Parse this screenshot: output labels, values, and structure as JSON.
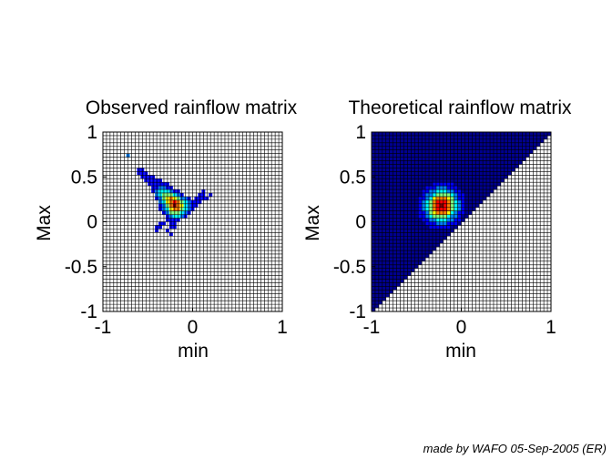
{
  "footer": "made by WAFO 05-Sep-2005 (ER)",
  "colormap": [
    "#00008f",
    "#0000ff",
    "#0080ff",
    "#00ffff",
    "#80ff80",
    "#ffff00",
    "#ff8000",
    "#ff0000",
    "#800000"
  ],
  "chart_data": [
    {
      "type": "heatmap",
      "title": "Observed rainflow matrix",
      "xlabel": "min",
      "ylabel": "Max",
      "xlim": [
        -1,
        1
      ],
      "ylim": [
        -1,
        1
      ],
      "xticks": [
        "-1",
        "0",
        "1"
      ],
      "yticks": [
        "-1",
        "-0.5",
        "0",
        "0.5",
        "1"
      ],
      "grid": true,
      "grid_step": 0.04,
      "cells": [
        [
          -0.72,
          0.74,
          0.25
        ],
        [
          -0.6,
          0.58,
          0.15
        ],
        [
          -0.56,
          0.58,
          0.15
        ],
        [
          -0.6,
          0.54,
          0.15
        ],
        [
          -0.56,
          0.54,
          0.15
        ],
        [
          -0.52,
          0.54,
          0.15
        ],
        [
          -0.56,
          0.5,
          0.15
        ],
        [
          -0.52,
          0.5,
          0.15
        ],
        [
          -0.48,
          0.5,
          0.15
        ],
        [
          -0.44,
          0.5,
          0.15
        ],
        [
          -0.52,
          0.46,
          0.15
        ],
        [
          -0.48,
          0.46,
          0.15
        ],
        [
          -0.44,
          0.46,
          0.15
        ],
        [
          -0.4,
          0.46,
          0.15
        ],
        [
          -0.36,
          0.46,
          0.15
        ],
        [
          -0.48,
          0.42,
          0.15
        ],
        [
          -0.44,
          0.42,
          0.15
        ],
        [
          -0.4,
          0.42,
          0.15
        ],
        [
          -0.36,
          0.42,
          0.15
        ],
        [
          -0.32,
          0.42,
          0.15
        ],
        [
          -0.28,
          0.42,
          0.15
        ],
        [
          -0.44,
          0.38,
          0.15
        ],
        [
          -0.4,
          0.38,
          0.15
        ],
        [
          -0.36,
          0.38,
          0.25
        ],
        [
          -0.32,
          0.38,
          0.25
        ],
        [
          -0.28,
          0.38,
          0.15
        ],
        [
          -0.24,
          0.38,
          0.15
        ],
        [
          -0.44,
          0.34,
          0.15
        ],
        [
          -0.4,
          0.34,
          0.25
        ],
        [
          -0.36,
          0.34,
          0.35
        ],
        [
          -0.32,
          0.34,
          0.4
        ],
        [
          -0.28,
          0.34,
          0.35
        ],
        [
          -0.24,
          0.34,
          0.25
        ],
        [
          -0.2,
          0.34,
          0.15
        ],
        [
          -0.16,
          0.34,
          0.15
        ],
        [
          0.12,
          0.34,
          0.15
        ],
        [
          -0.4,
          0.3,
          0.25
        ],
        [
          -0.36,
          0.3,
          0.4
        ],
        [
          -0.32,
          0.3,
          0.55
        ],
        [
          -0.28,
          0.3,
          0.55
        ],
        [
          -0.24,
          0.3,
          0.45
        ],
        [
          -0.2,
          0.3,
          0.35
        ],
        [
          -0.16,
          0.3,
          0.25
        ],
        [
          -0.12,
          0.3,
          0.15
        ],
        [
          0.08,
          0.3,
          0.15
        ],
        [
          0.12,
          0.3,
          0.15
        ],
        [
          0.2,
          0.3,
          0.15
        ],
        [
          -0.4,
          0.26,
          0.15
        ],
        [
          -0.36,
          0.26,
          0.3
        ],
        [
          -0.32,
          0.26,
          0.5
        ],
        [
          -0.28,
          0.26,
          0.65
        ],
        [
          -0.24,
          0.26,
          0.7
        ],
        [
          -0.2,
          0.26,
          0.6
        ],
        [
          -0.16,
          0.26,
          0.45
        ],
        [
          -0.12,
          0.26,
          0.3
        ],
        [
          -0.08,
          0.26,
          0.2
        ],
        [
          -0.04,
          0.26,
          0.15
        ],
        [
          0.04,
          0.26,
          0.15
        ],
        [
          0.08,
          0.26,
          0.15
        ],
        [
          0.12,
          0.26,
          0.15
        ],
        [
          0.16,
          0.26,
          0.15
        ],
        [
          -0.36,
          0.22,
          0.2
        ],
        [
          -0.32,
          0.22,
          0.4
        ],
        [
          -0.28,
          0.22,
          0.6
        ],
        [
          -0.24,
          0.22,
          0.8
        ],
        [
          -0.2,
          0.22,
          0.85
        ],
        [
          -0.16,
          0.22,
          0.7
        ],
        [
          -0.12,
          0.22,
          0.5
        ],
        [
          -0.08,
          0.22,
          0.35
        ],
        [
          -0.04,
          0.22,
          0.25
        ],
        [
          0.0,
          0.22,
          0.15
        ],
        [
          0.04,
          0.22,
          0.15
        ],
        [
          0.08,
          0.22,
          0.15
        ],
        [
          -0.36,
          0.18,
          0.15
        ],
        [
          -0.32,
          0.18,
          0.3
        ],
        [
          -0.28,
          0.18,
          0.5
        ],
        [
          -0.24,
          0.18,
          0.75
        ],
        [
          -0.2,
          0.18,
          0.95
        ],
        [
          -0.16,
          0.18,
          0.8
        ],
        [
          -0.12,
          0.18,
          0.6
        ],
        [
          -0.08,
          0.18,
          0.4
        ],
        [
          -0.04,
          0.18,
          0.25
        ],
        [
          0.0,
          0.18,
          0.15
        ],
        [
          0.04,
          0.18,
          0.15
        ],
        [
          -0.36,
          0.14,
          0.15
        ],
        [
          -0.32,
          0.14,
          0.2
        ],
        [
          -0.28,
          0.14,
          0.4
        ],
        [
          -0.24,
          0.14,
          0.6
        ],
        [
          -0.2,
          0.14,
          0.8
        ],
        [
          -0.16,
          0.14,
          0.7
        ],
        [
          -0.12,
          0.14,
          0.5
        ],
        [
          -0.08,
          0.14,
          0.35
        ],
        [
          -0.04,
          0.14,
          0.2
        ],
        [
          0.0,
          0.14,
          0.15
        ],
        [
          -0.32,
          0.1,
          0.15
        ],
        [
          -0.28,
          0.1,
          0.25
        ],
        [
          -0.24,
          0.1,
          0.45
        ],
        [
          -0.2,
          0.1,
          0.55
        ],
        [
          -0.16,
          0.1,
          0.5
        ],
        [
          -0.12,
          0.1,
          0.4
        ],
        [
          -0.08,
          0.1,
          0.25
        ],
        [
          -0.04,
          0.1,
          0.15
        ],
        [
          -0.28,
          0.06,
          0.15
        ],
        [
          -0.24,
          0.06,
          0.25
        ],
        [
          -0.2,
          0.06,
          0.35
        ],
        [
          -0.16,
          0.06,
          0.35
        ],
        [
          -0.12,
          0.06,
          0.25
        ],
        [
          -0.08,
          0.06,
          0.15
        ],
        [
          -0.28,
          0.02,
          0.15
        ],
        [
          -0.24,
          0.02,
          0.15
        ],
        [
          -0.2,
          0.02,
          0.15
        ],
        [
          -0.16,
          0.02,
          0.15
        ],
        [
          -0.36,
          -0.02,
          0.15
        ],
        [
          -0.32,
          -0.02,
          0.15
        ],
        [
          -0.24,
          -0.02,
          0.15
        ],
        [
          -0.2,
          -0.02,
          0.15
        ],
        [
          -0.4,
          -0.06,
          0.15
        ],
        [
          -0.36,
          -0.06,
          0.15
        ],
        [
          -0.24,
          -0.06,
          0.15
        ],
        [
          -0.2,
          -0.06,
          0.15
        ],
        [
          -0.4,
          -0.1,
          0.15
        ],
        [
          -0.28,
          -0.1,
          0.15
        ],
        [
          -0.24,
          -0.14,
          0.15
        ]
      ]
    },
    {
      "type": "heatmap",
      "title": "Theoretical rainflow matrix",
      "xlabel": "min",
      "ylabel": "Max",
      "xlim": [
        -1,
        1
      ],
      "ylim": [
        -1,
        1
      ],
      "xticks": [
        "-1",
        "0",
        "1"
      ],
      "yticks": [
        "-1",
        "-0.5",
        "0",
        "0.5",
        "1"
      ],
      "grid": true,
      "grid_step": 0.04,
      "peak": [
        -0.22,
        0.18
      ],
      "region": "Max >= min"
    }
  ]
}
